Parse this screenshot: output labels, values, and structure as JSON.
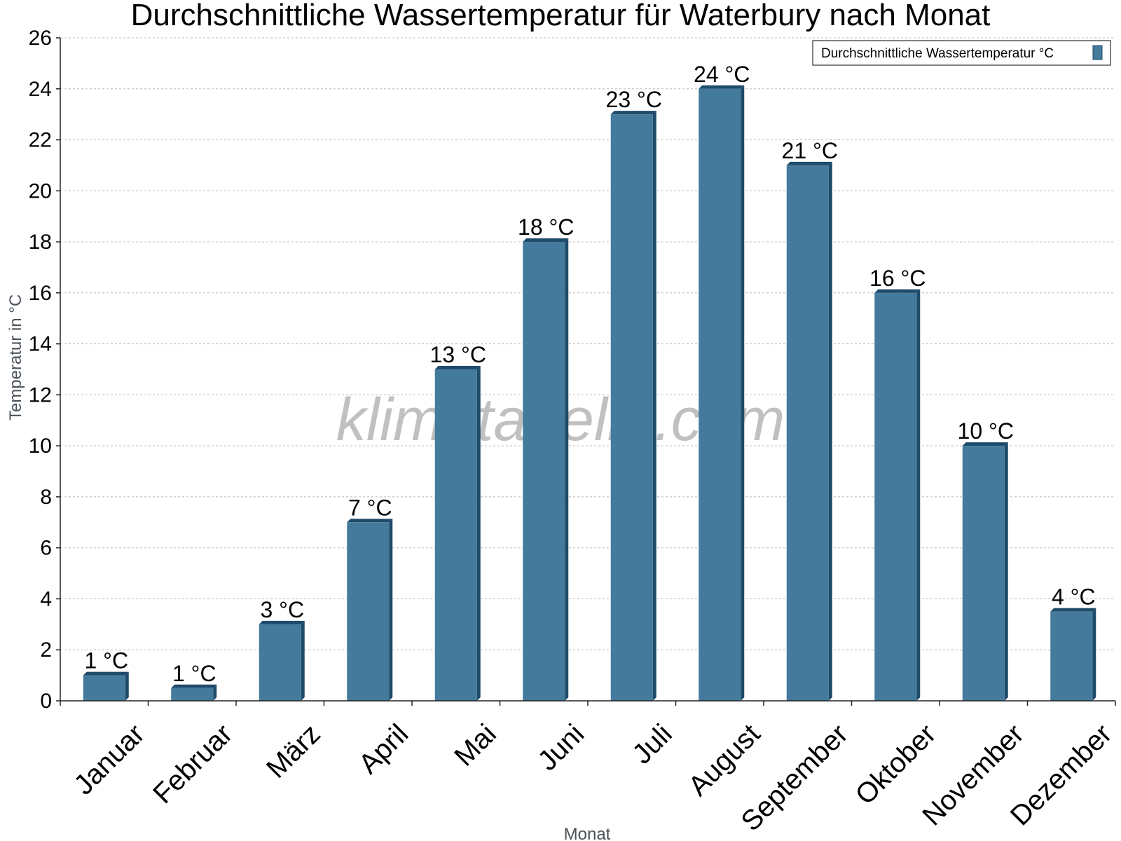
{
  "chart_data": {
    "type": "bar",
    "title": "Durchschnittliche Wassertemperatur für Waterbury nach Monat",
    "xlabel": "Monat",
    "ylabel": "Temperatur in °C",
    "ylim": [
      0,
      26
    ],
    "yticks": [
      "0",
      "2",
      "4",
      "6",
      "8",
      "10",
      "12",
      "14",
      "16",
      "18",
      "20",
      "22",
      "24",
      "26"
    ],
    "grid": true,
    "legend_position": "top-right",
    "categories": [
      "Januar",
      "Februar",
      "März",
      "April",
      "Mai",
      "Juni",
      "Juli",
      "August",
      "September",
      "Oktober",
      "November",
      "Dezember"
    ],
    "series": [
      {
        "name": "Durchschnittliche Wassertemperatur °C",
        "color": "#447a9c",
        "values": [
          1,
          0.5,
          3,
          7,
          13,
          18,
          23,
          24,
          21,
          16,
          10,
          3.5
        ],
        "labels": [
          "1 °C",
          "1 °C",
          "3 °C",
          "7 °C",
          "13 °C",
          "18 °C",
          "23 °C",
          "24 °C",
          "21 °C",
          "16 °C",
          "10 °C",
          "4 °C"
        ]
      }
    ],
    "watermark": "klimatabelle.com"
  }
}
